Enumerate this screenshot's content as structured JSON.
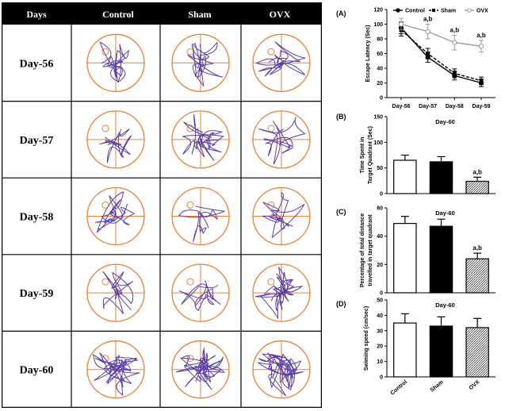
{
  "table": {
    "headers": [
      "Days",
      "Control",
      "Sham",
      "OVX"
    ],
    "rows": [
      "Day-56",
      "Day-57",
      "Day-58",
      "Day-59",
      "Day-60"
    ],
    "accent_colors": {
      "header_bg": "#000000",
      "pool_border": "#e8803a",
      "crosshair": "#e8803a",
      "track": "#5b3fa6"
    }
  },
  "chart_data": [
    {
      "panel": "(A)",
      "type": "line",
      "title": "",
      "ylabel": "Escape Latency (Sec)",
      "categories": [
        "Day-56",
        "Day-57",
        "Day-58",
        "Day-59"
      ],
      "ylim": [
        0,
        120
      ],
      "yticks": [
        0,
        20,
        40,
        60,
        80,
        100,
        120
      ],
      "legend": "top",
      "series": [
        {
          "name": "Control",
          "values": [
            95,
            55,
            30,
            20
          ],
          "errors": [
            8,
            7,
            6,
            5
          ],
          "color": "#000000",
          "dash": "solid",
          "marker": "circle-filled"
        },
        {
          "name": "Sham",
          "values": [
            92,
            60,
            33,
            23
          ],
          "errors": [
            8,
            7,
            6,
            5
          ],
          "color": "#000000",
          "dash": "dashed",
          "marker": "square-filled"
        },
        {
          "name": "OVX",
          "values": [
            100,
            90,
            75,
            70
          ],
          "errors": [
            8,
            10,
            10,
            8
          ],
          "color": "#9a9a9a",
          "dash": "solid",
          "marker": "circle-open"
        }
      ],
      "annotations": [
        {
          "category": "Day-57",
          "text": "a,b"
        },
        {
          "category": "Day-58",
          "text": "a,b"
        },
        {
          "category": "Day-59",
          "text": "a,b"
        }
      ]
    },
    {
      "panel": "(B)",
      "type": "bar",
      "title": "Day-60",
      "ylabel": "Time Spent in Target Quadrant (Sec)",
      "categories": [
        "Control",
        "Sham",
        "OVX"
      ],
      "values": [
        65,
        62,
        24
      ],
      "errors": [
        10,
        10,
        8
      ],
      "ylim": [
        0,
        150
      ],
      "yticks": [
        0,
        50,
        100,
        150
      ],
      "annotations": [
        {
          "category": "OVX",
          "text": "a,b"
        }
      ]
    },
    {
      "panel": "(C)",
      "type": "bar",
      "title": "Day-60",
      "ylabel": "Percentage of total distance travelled in target quadrant",
      "categories": [
        "Control",
        "Sham",
        "OVX"
      ],
      "values": [
        49,
        47,
        24
      ],
      "errors": [
        5,
        5,
        4
      ],
      "ylim": [
        0,
        60
      ],
      "yticks": [
        0,
        20,
        40,
        60
      ],
      "annotations": [
        {
          "category": "OVX",
          "text": "a,b"
        }
      ]
    },
    {
      "panel": "(D)",
      "type": "bar",
      "title": "Day-60",
      "ylabel": "Swiming speed (cm/sec)",
      "categories": [
        "Control",
        "Sham",
        "OVX"
      ],
      "values": [
        35,
        33,
        32
      ],
      "errors": [
        6,
        6,
        6
      ],
      "ylim": [
        0,
        50
      ],
      "yticks": [
        0,
        10,
        20,
        30,
        40,
        50
      ]
    }
  ]
}
